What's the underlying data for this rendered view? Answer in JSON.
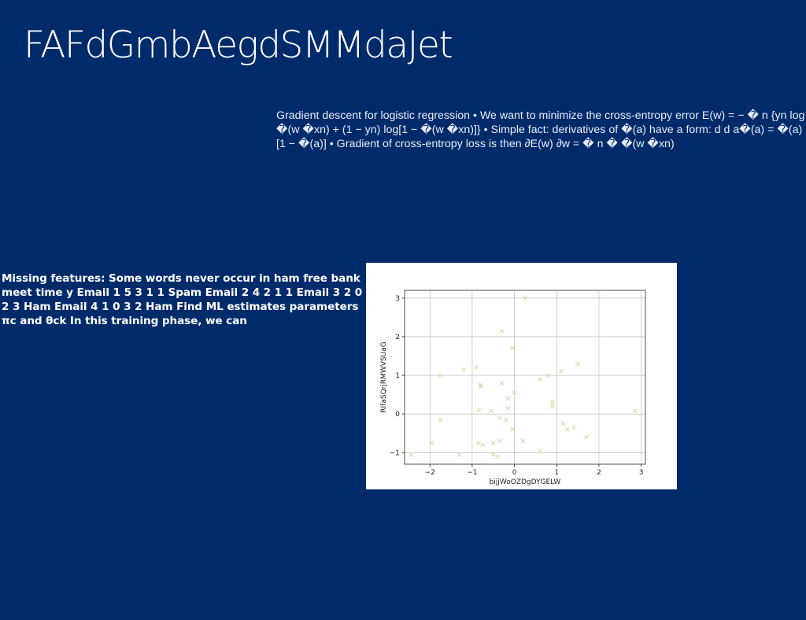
{
  "slide": {
    "title": "FAFdGmbAegdSMMdaJet",
    "body": "Gradient descent for logistic regression • We want to minimize the cross-entropy error E(w) = − � n {yn log �(w �xn) + (1 − yn) log[1 − �(w �xn)]} • Simple fact: derivatives of �(a) have a form: d d a�(a) = �(a)[1 − �(a)] • Gradient of cross-entropy loss is then ∂E(w) ∂w = � n � �(w �xn)",
    "side_text": "Missing features: Some words never occur in ham free bank meet time y Email 1 5 3 1 1 Spam Email 2 4 2 1 1 Email 3 2 0 2 3 Ham Email 4 1 0 3 2 Ham Find ML estimates parameters πc and θck In this training phase, we can",
    "background_color": "#002b6b"
  },
  "chart_data": {
    "type": "scatter",
    "title": "",
    "xlabel": "bijjWoOZDgDYGELW",
    "ylabel": "RIfaSQrjRMWVSUaG",
    "xlim": [
      -2.6,
      3.1
    ],
    "ylim": [
      -1.3,
      3.2
    ],
    "xticks": [
      -2,
      -1,
      0,
      1,
      2,
      3
    ],
    "yticks": [
      -1,
      0,
      1,
      2,
      3
    ],
    "xtick_labels": [
      "−2",
      "−1",
      "0",
      "1",
      "2",
      "3"
    ],
    "ytick_labels": [
      "−1",
      "0",
      "1",
      "2",
      "3"
    ],
    "grid": true,
    "marker": "x",
    "marker_color": "#d8dcae",
    "series": [
      {
        "points": [
          [
            0.25,
            3.0
          ],
          [
            -0.3,
            2.15
          ],
          [
            -0.05,
            1.7
          ],
          [
            -0.9,
            1.2
          ],
          [
            -1.2,
            1.15
          ],
          [
            -1.75,
            1.0
          ],
          [
            1.5,
            1.3
          ],
          [
            1.1,
            1.1
          ],
          [
            0.8,
            1.0
          ],
          [
            0.6,
            0.9
          ],
          [
            -0.8,
            0.75
          ],
          [
            -0.8,
            0.7
          ],
          [
            -0.3,
            0.8
          ],
          [
            0.0,
            0.55
          ],
          [
            0.9,
            0.3
          ],
          [
            0.9,
            0.2
          ],
          [
            -0.15,
            0.4
          ],
          [
            -0.15,
            0.15
          ],
          [
            -0.85,
            0.1
          ],
          [
            -0.55,
            0.08
          ],
          [
            2.85,
            0.08
          ],
          [
            -0.2,
            -0.15
          ],
          [
            -0.35,
            -0.1
          ],
          [
            -1.75,
            -0.15
          ],
          [
            1.15,
            -0.25
          ],
          [
            1.25,
            -0.4
          ],
          [
            1.4,
            -0.35
          ],
          [
            -0.05,
            -0.4
          ],
          [
            1.7,
            -0.6
          ],
          [
            -1.95,
            -0.75
          ],
          [
            -0.85,
            -0.75
          ],
          [
            -0.75,
            -0.8
          ],
          [
            -0.5,
            -0.75
          ],
          [
            -0.35,
            -0.7
          ],
          [
            0.2,
            -0.7
          ],
          [
            0.6,
            -0.95
          ],
          [
            -2.45,
            -1.05
          ],
          [
            -1.3,
            -1.05
          ],
          [
            -0.5,
            -1.05
          ],
          [
            -0.4,
            -1.1
          ]
        ]
      }
    ]
  }
}
